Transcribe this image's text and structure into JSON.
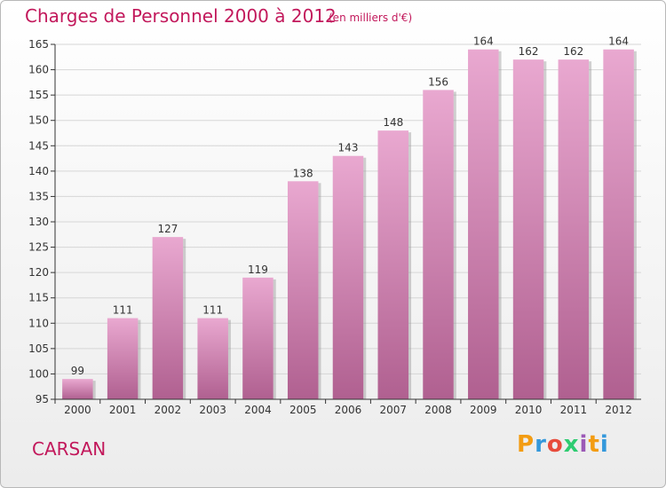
{
  "header": {
    "title": "Charges de Personnel 2000 à 2012",
    "unit": "(en milliers d'€)"
  },
  "footer": {
    "city": "CARSAN",
    "logo": [
      "P",
      "r",
      "o",
      "x",
      "i",
      "t",
      "i"
    ],
    "logo_colors": [
      "#f39c12",
      "#3498db",
      "#e74c3c",
      "#2ecc71",
      "#9b59b6",
      "#f39c12",
      "#3498db"
    ]
  },
  "colors": {
    "title": "#c2185b",
    "bar_top": "#e9a8d0",
    "bar_bottom": "#b06090"
  },
  "chart_data": {
    "type": "bar",
    "categories": [
      "2000",
      "2001",
      "2002",
      "2003",
      "2004",
      "2005",
      "2006",
      "2007",
      "2008",
      "2009",
      "2010",
      "2011",
      "2012"
    ],
    "values": [
      99,
      111,
      127,
      111,
      119,
      138,
      143,
      148,
      156,
      164,
      162,
      162,
      164
    ],
    "ylim": [
      95,
      165
    ],
    "yticks": [
      95,
      100,
      105,
      110,
      115,
      120,
      125,
      130,
      135,
      140,
      145,
      150,
      155,
      160,
      165
    ],
    "grid": true
  }
}
